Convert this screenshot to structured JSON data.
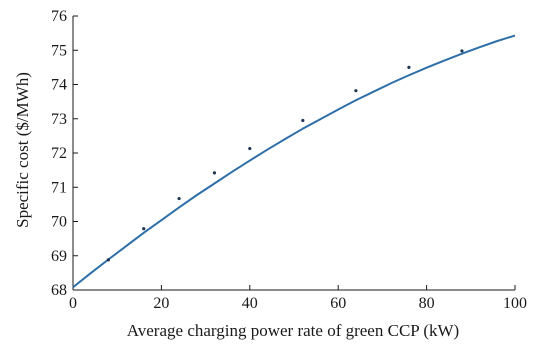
{
  "chart_data": {
    "type": "line",
    "title": "",
    "xlabel": "Average charging power rate of green CCP (kW)",
    "ylabel": "Specific cost ($/MWh)",
    "xlim": [
      0,
      100
    ],
    "ylim": [
      68,
      76
    ],
    "xticks": [
      0,
      20,
      40,
      60,
      80,
      100
    ],
    "yticks": [
      68,
      69,
      70,
      71,
      72,
      73,
      74,
      75,
      76
    ],
    "grid": false,
    "legend": "none",
    "colors": {
      "line": "#2f6fa8",
      "marker": "#1f3550",
      "axis": "#1a1a1a"
    },
    "series": [
      {
        "style": "line",
        "x": [
          0,
          4,
          8,
          12,
          16,
          20,
          24,
          28,
          32,
          36,
          40,
          44,
          48,
          52,
          56,
          60,
          64,
          68,
          72,
          76,
          80,
          84,
          88,
          92,
          96,
          100
        ],
        "values": [
          68.08,
          68.49,
          68.89,
          69.28,
          69.67,
          70.04,
          70.41,
          70.77,
          71.11,
          71.45,
          71.78,
          72.1,
          72.41,
          72.71,
          72.99,
          73.27,
          73.54,
          73.79,
          74.04,
          74.27,
          74.49,
          74.7,
          74.9,
          75.09,
          75.27,
          75.43
        ]
      },
      {
        "style": "markers",
        "x": [
          8,
          16,
          24,
          32,
          40,
          52,
          64,
          76,
          88
        ],
        "values": [
          68.88,
          69.79,
          70.67,
          71.42,
          72.13,
          72.95,
          73.82,
          74.5,
          74.98
        ]
      }
    ]
  }
}
